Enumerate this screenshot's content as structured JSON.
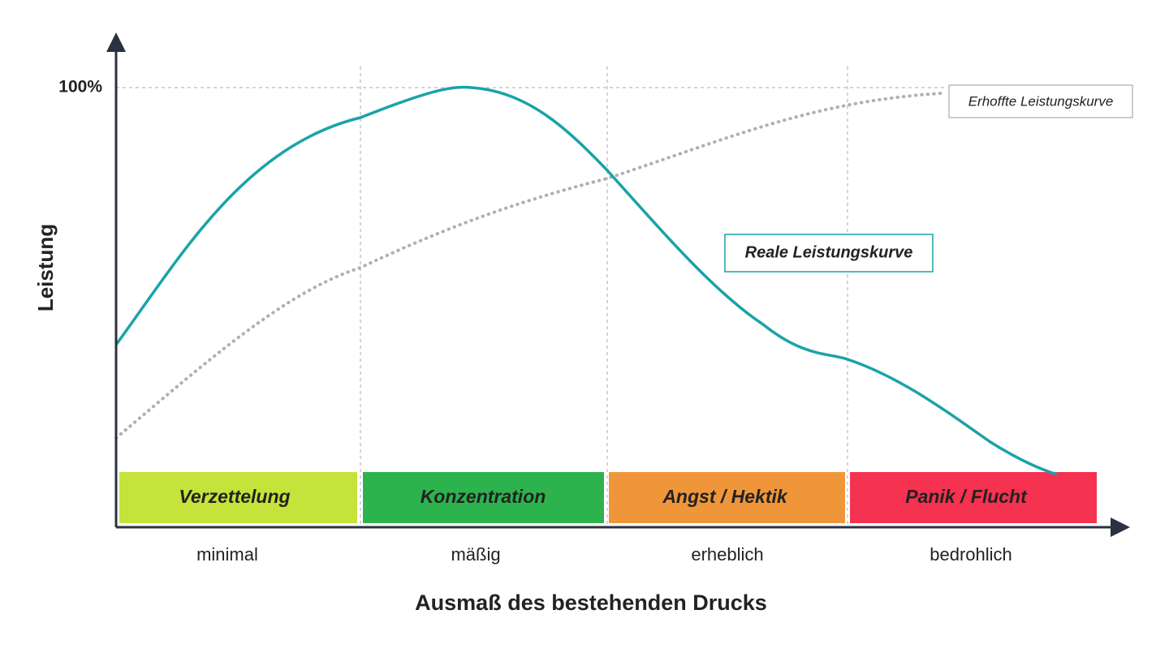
{
  "y_axis": {
    "title": "Leistung",
    "tick": "100%"
  },
  "x_axis": {
    "title": "Ausmaß des bestehenden Drucks",
    "labels": [
      "minimal",
      "mäßig",
      "erheblich",
      "bedrohlich"
    ]
  },
  "zones": [
    {
      "label": "Verzettelung",
      "color": "#c5e33a"
    },
    {
      "label": "Konzentration",
      "color": "#2db34e"
    },
    {
      "label": "Angst / Hektik",
      "color": "#f0963a"
    },
    {
      "label": "Panik / Flucht",
      "color": "#f5324f"
    }
  ],
  "curves": [
    {
      "label": "Erhoffte Leistungskurve",
      "color": "#b0b0b0"
    },
    {
      "label": "Reale Leistungskurve",
      "color": "#1aa3a8"
    }
  ]
}
